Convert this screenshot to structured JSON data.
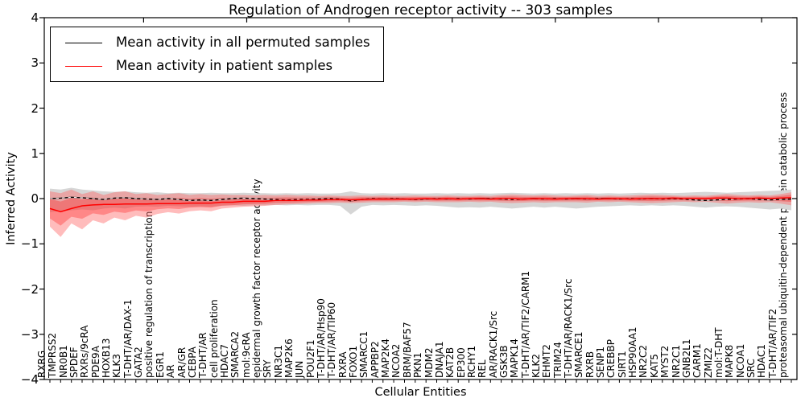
{
  "chart_data": {
    "type": "line",
    "title": "Regulation of Androgen receptor activity -- 303 samples",
    "xlabel": "Cellular Entities",
    "ylabel": "Inferred Activity",
    "ylim": [
      -4,
      4
    ],
    "yticks": [
      4,
      3,
      2,
      1,
      0,
      -1,
      -2,
      -3,
      -4
    ],
    "ytick_labels": [
      "4",
      "3",
      "2",
      "1",
      "0",
      "−1",
      "−2",
      "−3",
      "−4"
    ],
    "grid": false,
    "legend_position": "upper left",
    "categories": [
      "RXRG",
      "TMPRSS2",
      "NR0B1",
      "SPDEF",
      "RXRs/9cRA",
      "PDE9A",
      "HOXB13",
      "KLK3",
      "T-DHT/AR/DAX-1",
      "GATA2",
      "positive regulation of transcription",
      "EGR1",
      "AR",
      "AR/GR",
      "CEBPA",
      "T-DHT/AR",
      "cell proliferation",
      "HDAC7",
      "SMARCA2",
      "mol:9cRA",
      "epidermal growth factor receptor activity",
      "SRY",
      "NR3C1",
      "MAP2K6",
      "JUN",
      "POU2F1",
      "T-DHT/AR/Hsp90",
      "T-DHT/AR/TIP60",
      "RXRA",
      "FOXO1",
      "SMARCC1",
      "APPBP2",
      "MAP2K4",
      "NCOA2",
      "BRM/BAF57",
      "PKN1",
      "MDM2",
      "DNAJA1",
      "KAT2B",
      "EP300",
      "RCHY1",
      "REL",
      "AR/RACK1/Src",
      "GSK3B",
      "MAPK14",
      "T-DHT/AR/TIF2/CARM1",
      "KLK2",
      "EHMT2",
      "TRIM24",
      "T-DHT/AR/RACK1/Src",
      "SMARCE1",
      "RXRB",
      "SENP1",
      "CREBBP",
      "SIRT1",
      "HSP90AA1",
      "NR2C2",
      "KAT5",
      "MYST2",
      "NR2C1",
      "GNB2L1",
      "CARM1",
      "ZMIZ2",
      "mol:T-DHT",
      "MAPK8",
      "NCOA1",
      "SRC",
      "HDAC1",
      "T-DHT/AR/TIF2",
      "proteasomal ubiquitin-dependent protein catabolic process"
    ],
    "series": [
      {
        "name": "Mean activity in all permuted samples",
        "color": "#000000",
        "band_color": "#d6d6d6",
        "values": [
          0.0,
          0.01,
          0.03,
          0.02,
          0.0,
          -0.02,
          0.01,
          0.02,
          0.0,
          -0.01,
          -0.02,
          0.0,
          -0.02,
          -0.04,
          -0.03,
          -0.04,
          -0.02,
          0.0,
          0.01,
          0.0,
          -0.01,
          -0.02,
          -0.03,
          -0.02,
          -0.02,
          -0.01,
          0.0,
          -0.01,
          -0.05,
          -0.02,
          0.0,
          -0.01,
          0.0,
          -0.01,
          -0.02,
          -0.01,
          0.0,
          -0.01,
          0.0,
          -0.01,
          0.0,
          0.0,
          -0.01,
          -0.02,
          -0.01,
          0.0,
          -0.01,
          0.0,
          -0.01,
          0.0,
          -0.01,
          0.0,
          0.0,
          -0.01,
          0.0,
          -0.01,
          0.0,
          -0.01,
          0.0,
          -0.01,
          -0.03,
          -0.04,
          -0.03,
          -0.02,
          -0.01,
          0.0,
          -0.02,
          -0.03,
          -0.02,
          -0.01
        ],
        "band_upper": [
          0.22,
          0.2,
          0.24,
          0.2,
          0.18,
          0.16,
          0.15,
          0.16,
          0.14,
          0.13,
          0.14,
          0.12,
          0.13,
          0.12,
          0.12,
          0.13,
          0.12,
          0.12,
          0.13,
          0.12,
          0.12,
          0.11,
          0.12,
          0.11,
          0.12,
          0.11,
          0.11,
          0.12,
          0.16,
          0.12,
          0.11,
          0.12,
          0.11,
          0.12,
          0.11,
          0.11,
          0.12,
          0.11,
          0.12,
          0.11,
          0.12,
          0.11,
          0.12,
          0.13,
          0.12,
          0.11,
          0.12,
          0.11,
          0.12,
          0.11,
          0.12,
          0.11,
          0.12,
          0.11,
          0.12,
          0.13,
          0.12,
          0.13,
          0.12,
          0.13,
          0.14,
          0.15,
          0.14,
          0.13,
          0.14,
          0.15,
          0.16,
          0.17,
          0.18,
          0.2
        ],
        "band_lower": [
          -0.3,
          -0.28,
          -0.26,
          -0.24,
          -0.26,
          -0.22,
          -0.2,
          -0.22,
          -0.18,
          -0.17,
          -0.18,
          -0.16,
          -0.17,
          -0.18,
          -0.17,
          -0.18,
          -0.16,
          -0.15,
          -0.16,
          -0.15,
          -0.15,
          -0.14,
          -0.15,
          -0.14,
          -0.15,
          -0.14,
          -0.14,
          -0.16,
          -0.35,
          -0.18,
          -0.14,
          -0.15,
          -0.14,
          -0.15,
          -0.16,
          -0.15,
          -0.16,
          -0.18,
          -0.2,
          -0.19,
          -0.2,
          -0.18,
          -0.2,
          -0.22,
          -0.2,
          -0.18,
          -0.2,
          -0.18,
          -0.2,
          -0.22,
          -0.2,
          -0.18,
          -0.17,
          -0.16,
          -0.15,
          -0.16,
          -0.15,
          -0.16,
          -0.15,
          -0.16,
          -0.18,
          -0.2,
          -0.18,
          -0.17,
          -0.18,
          -0.2,
          -0.22,
          -0.24,
          -0.22,
          -0.26
        ]
      },
      {
        "name": "Mean activity in patient samples",
        "color": "#ff0000",
        "band_color": "#ff6a6a",
        "values": [
          -0.22,
          -0.29,
          -0.22,
          -0.16,
          -0.14,
          -0.13,
          -0.13,
          -0.12,
          -0.12,
          -0.12,
          -0.11,
          -0.11,
          -0.11,
          -0.1,
          -0.1,
          -0.1,
          -0.08,
          -0.08,
          -0.06,
          -0.06,
          -0.06,
          -0.04,
          -0.04,
          -0.04,
          -0.03,
          -0.03,
          -0.02,
          -0.02,
          -0.03,
          -0.02,
          -0.01,
          -0.01,
          -0.01,
          -0.01,
          -0.01,
          0.0,
          -0.01,
          0.0,
          -0.01,
          0.0,
          0.0,
          -0.01,
          0.0,
          0.0,
          -0.01,
          0.0,
          0.0,
          -0.01,
          0.0,
          0.0,
          0.0,
          -0.01,
          0.0,
          0.0,
          -0.01,
          0.0,
          0.0,
          0.0,
          0.01,
          0.0,
          0.0,
          0.0,
          0.01,
          0.01,
          0.0,
          0.0,
          0.01,
          0.0,
          0.01,
          0.02
        ],
        "band_upper": [
          0.16,
          0.12,
          0.2,
          0.1,
          0.16,
          0.08,
          0.14,
          0.16,
          0.1,
          0.12,
          0.08,
          0.1,
          0.12,
          0.08,
          0.1,
          0.08,
          0.09,
          0.08,
          0.08,
          0.07,
          0.08,
          0.07,
          0.08,
          0.07,
          0.07,
          0.06,
          0.07,
          0.06,
          0.06,
          0.07,
          0.06,
          0.07,
          0.06,
          0.06,
          0.07,
          0.06,
          0.06,
          0.07,
          0.06,
          0.06,
          0.07,
          0.06,
          0.08,
          0.09,
          0.08,
          0.07,
          0.08,
          0.07,
          0.06,
          0.07,
          0.08,
          0.06,
          0.07,
          0.06,
          0.07,
          0.08,
          0.09,
          0.08,
          0.07,
          0.06,
          0.07,
          0.06,
          0.08,
          0.1,
          0.08,
          0.07,
          0.08,
          0.07,
          0.1,
          0.14
        ],
        "band_lower": [
          -0.62,
          -0.85,
          -0.55,
          -0.68,
          -0.48,
          -0.55,
          -0.42,
          -0.48,
          -0.38,
          -0.42,
          -0.34,
          -0.3,
          -0.33,
          -0.28,
          -0.26,
          -0.28,
          -0.22,
          -0.2,
          -0.18,
          -0.17,
          -0.16,
          -0.14,
          -0.13,
          -0.12,
          -0.11,
          -0.1,
          -0.1,
          -0.09,
          -0.1,
          -0.09,
          -0.08,
          -0.08,
          -0.08,
          -0.07,
          -0.08,
          -0.07,
          -0.08,
          -0.08,
          -0.08,
          -0.07,
          -0.08,
          -0.07,
          -0.09,
          -0.1,
          -0.09,
          -0.08,
          -0.09,
          -0.08,
          -0.08,
          -0.08,
          -0.09,
          -0.07,
          -0.08,
          -0.07,
          -0.08,
          -0.09,
          -0.1,
          -0.09,
          -0.08,
          -0.07,
          -0.08,
          -0.07,
          -0.09,
          -0.11,
          -0.09,
          -0.08,
          -0.09,
          -0.08,
          -0.11,
          -0.15
        ]
      }
    ]
  }
}
